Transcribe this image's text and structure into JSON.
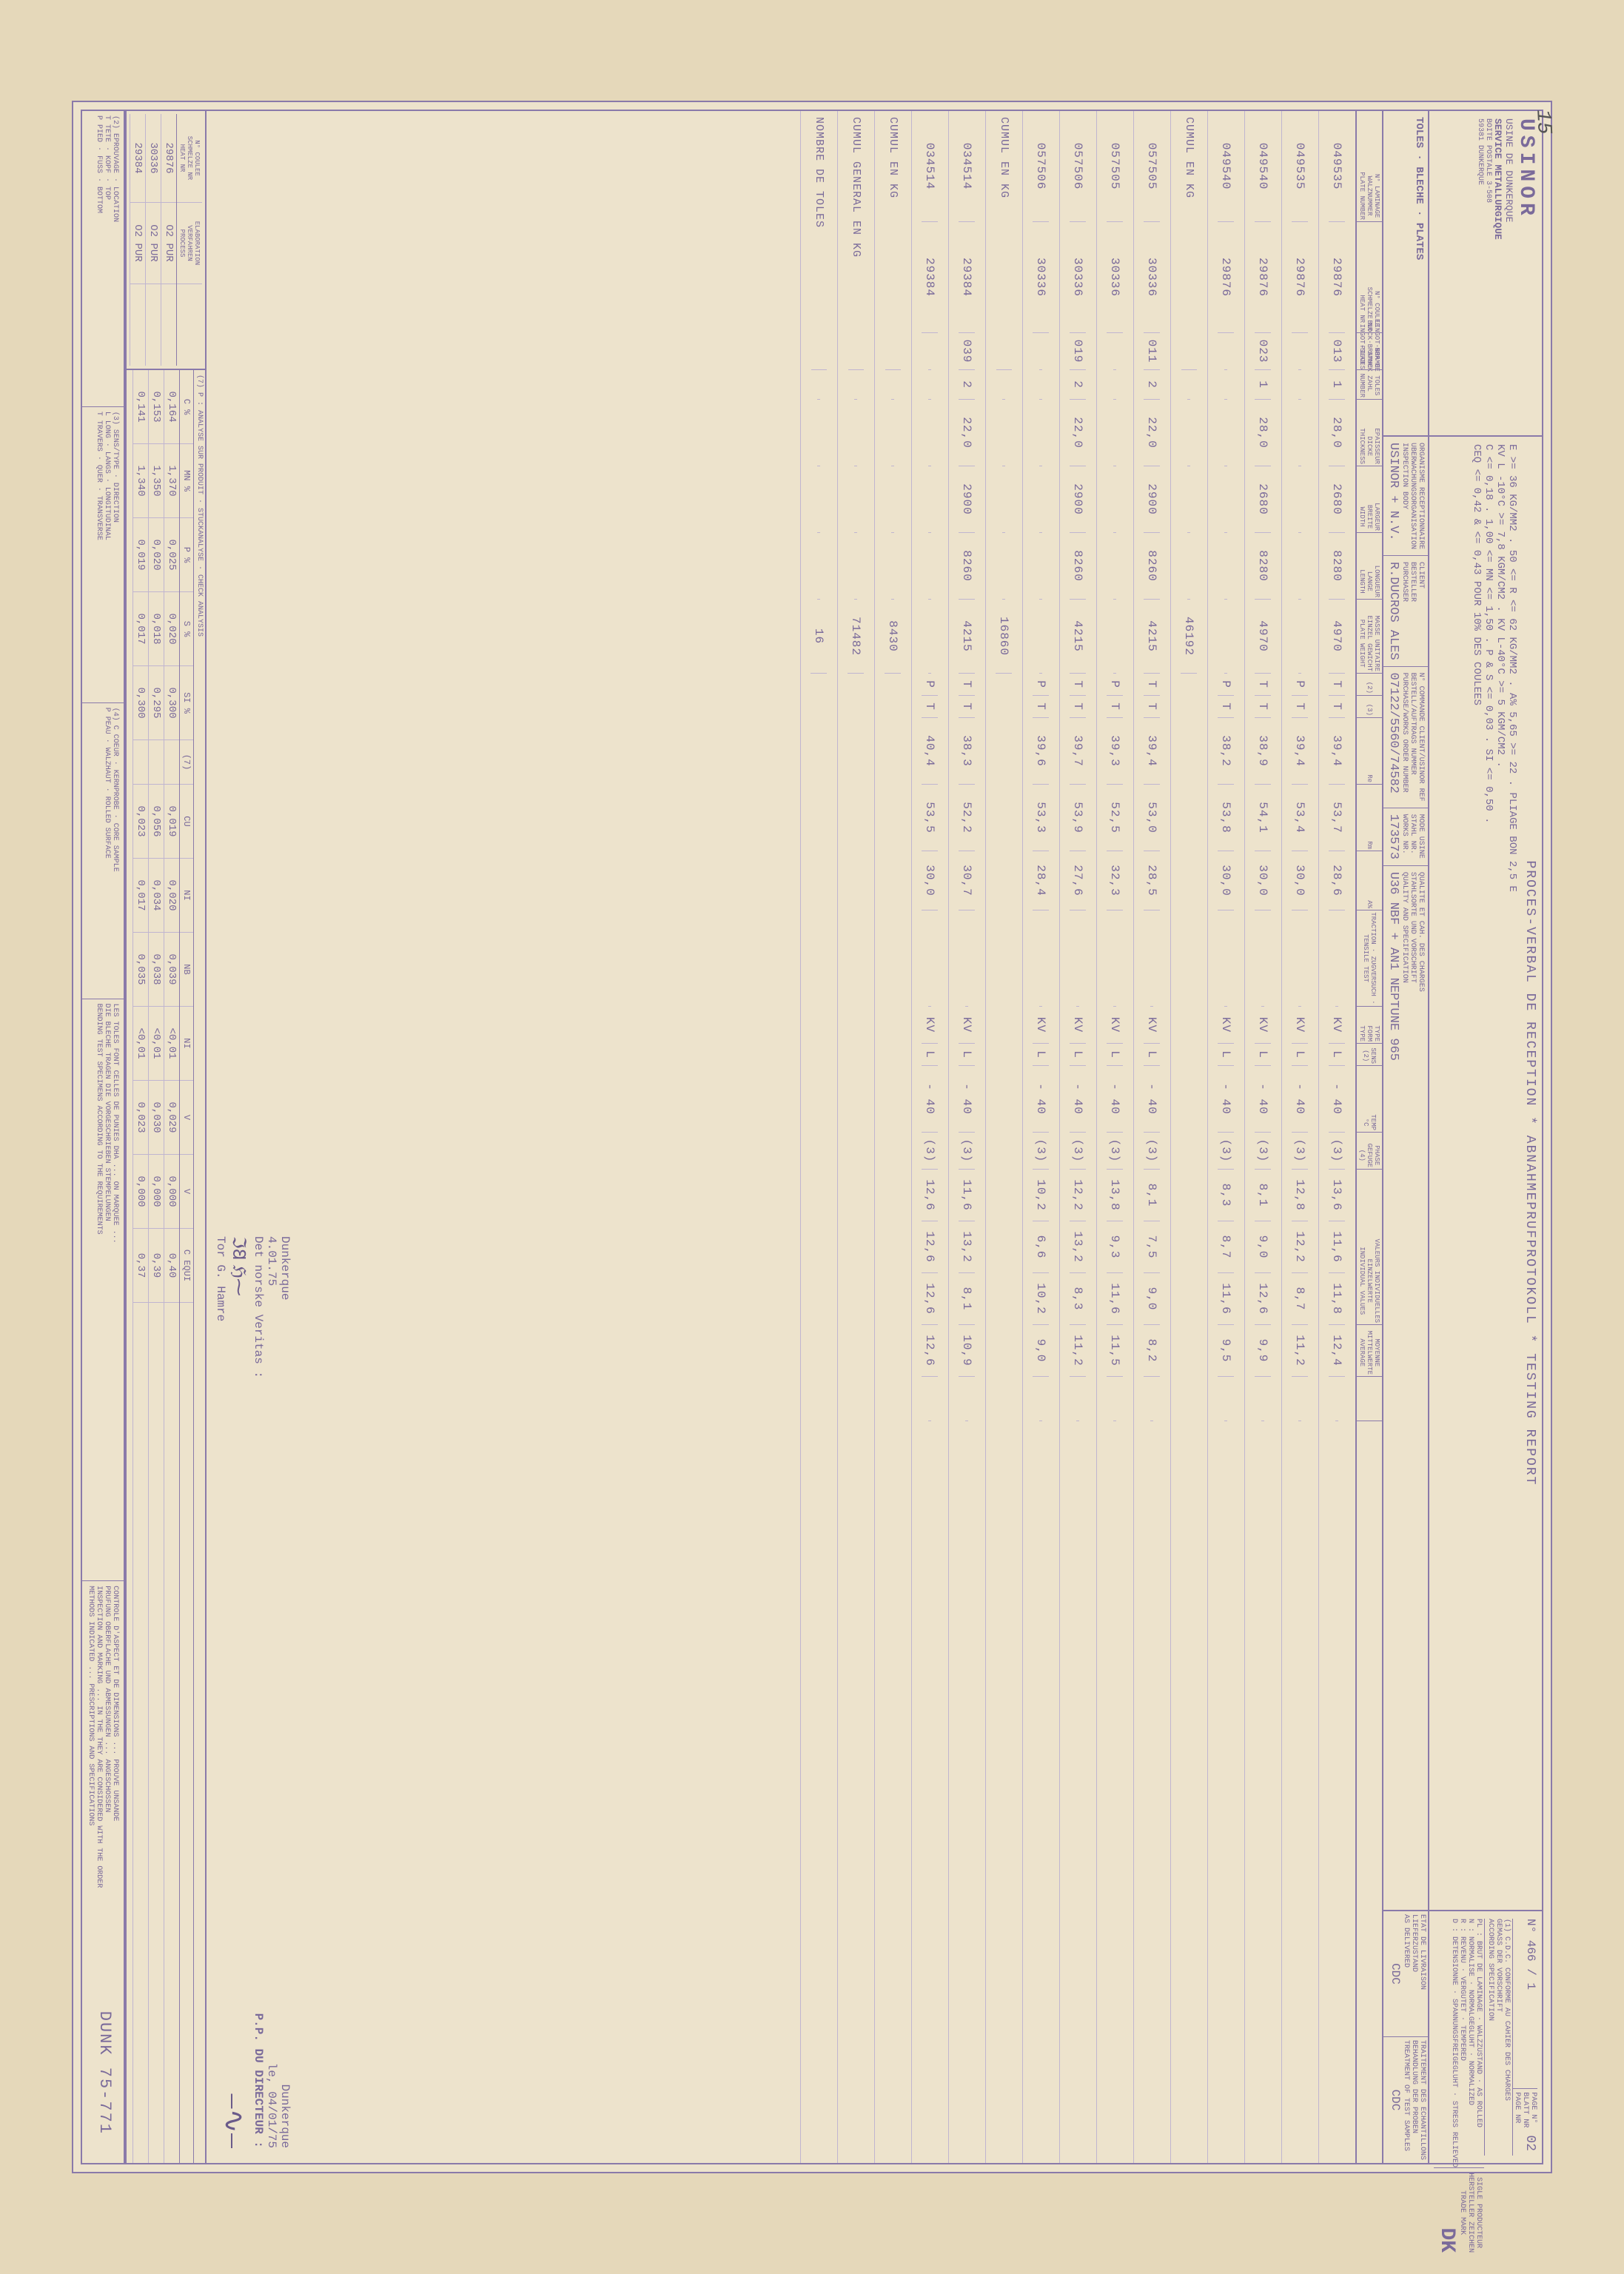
{
  "colors": {
    "ink": "#7a6a9a",
    "paper": "#ede3cc",
    "frame": "#8a7aaa",
    "rule": "#c0b5d0"
  },
  "stamp": "15",
  "header": {
    "company": "USINOR",
    "plant": "USINE DE DUNKERQUE",
    "service": "SERVICE METALLURGIQUE",
    "address1": "BOITE POSTALE 3-508",
    "address2": "59381 DUNKERQUE",
    "title": "PROCES-VERBAL DE RECEPTION * ABNAHMEPRUFPROTOKOLL * TESTING REPORT",
    "certno_lbl": "N°",
    "certno": "466 / 1",
    "page_lbl": "PAGE N°\nBLATT NR\nPAGE NR",
    "page": "02",
    "plates_lbl": "TOLES · BLECHE · PLATES",
    "cdc_lbl": "(1) C.D.C. CONFORME AU CAHIER DES CHARGES\nGEMASS DER VORSCHRIFT\nACCORDING SPECIFICATION",
    "states": "PL : BRUT DE LAMINAGE · WALZZUSTAND · AS ROLLED\nN : NORMALISE · NORMALGEGLUHT · NORMALIZED\nR : REVENU · VERGUTET · TEMPERED\nD : DETENSIONNE · SPANNUNGSFREIGEGLUHT · STRESS RELIEVED",
    "trade_lbl": "SIGLE PRODUCTEUR\nHERSTELLER ZEICHEN\nTRADE MARK",
    "trade": "DK"
  },
  "specs": {
    "line1": "E >= 36 KG/MM2 . 50 <= R <= 62 KG/MM2 . A% 5,65 >= 22 . PLIAGE BON 2,5 E",
    "line2": "KV L -10°C >= 7,8 KGM/CM2 . KV L-40°C >= 5 KGM/CM2 .",
    "line3": "C <= 0,18 . 1,00 <= MN <= 1,50 . P & S <= 0,03 . SI <= 0,50 .",
    "line4": "CEQ <= 0,42 & <= 0,43 POUR 10% DES COULEES",
    "standard": "U36 NBF + AN1 NEPTUNE 965"
  },
  "order": {
    "org_lbl": "ORGANISME RECEPTIONNAIRE\nUBERWACHUNGSORGANISATION\nINSPECTION BODY",
    "org": "USINOR + N.V.",
    "client_lbl": "CLIENT\nBESTELLER\nPURCHASER",
    "client": "R.DUCROS ALES",
    "cmdlbl": "N° COMMANDE CLIENT/USINOR REF\nBESTELL/AUFTRAGS NUMMER\nPURCHASE/WORKS ORDER NUMBER",
    "cmd": "07122/5560/74582",
    "mode_lbl": "MODE USINE\nSTAHL NR.\nWORKS NR.",
    "mode": "173573",
    "qv_lbl": "QUALITE ET CAH. DES CHARGES\nSTAHLSORTE UND VORSCHRIFT\nQUALITY AND SPECIFICATION",
    "etat_lbl": "ETAT DE LIVRAISON\nLIEFERZUSTAND\nAS DELIVERED",
    "cdc1": "CDC",
    "treat_lbl": "TRAITEMENT DES ECHANTILLONS\nBEHANDLUNG DER PROBEN\nTREATMENT OF TEST SAMPLES",
    "cdc2": "CDC"
  },
  "col": {
    "plate": "N° LAMINAGE\nWALZNUMMER\nPLATE NUMBER",
    "heat": "N° COULEE\nSCHMELZE NR\nHEAT NR",
    "ingot": "LINGOT·BRAME\nBLOCK·BRAMME\nINGOT·SLAB",
    "pcs": "NBR DE TOLES\nSTUCK ZAHL\nPIECES NUMBER",
    "thk": "EPAISSEUR\nDICKE\nTHICKNESS",
    "wid": "LARGEUR\nBREITE\nWIDTH",
    "len": "LONGUEUR\nLANGE\nLENGTH",
    "wgt": "MASSE UNITAIRE\nEINZEL GEWICHT\nPLATE WEIGHT",
    "pos": "(2)",
    "loc": "(3)",
    "re": "Re",
    "rm": "Rm",
    "a": "A%",
    "tensile": "TRACTION · ZUGVERSUCH · TENSILE TEST",
    "res_grp": "RESILIENCE · KERBSCHLAGVERSUCH · NOTCH TOUGHNESS",
    "type": "TYPE\nFORM\nTYPE",
    "sens": "SENS\n(2)",
    "temp": "TEMP\n°C",
    "ph": "PHASE\nGEFUGE\n(4)",
    "ind": "VALEURS INDIVIDUELLES\nEINZELWERTE\nINDIVIDUAL VALUES",
    "avg": "MOYENNE\nMITTELWERTE\nAVERAGE"
  },
  "rows": [
    {
      "plate": "049535",
      "heat": "29876",
      "ingot": "013",
      "pcs": "1",
      "thk": "28,0",
      "wid": "2680",
      "len": "8280",
      "wgt": "4970",
      "pos": "T",
      "loc": "T",
      "re": "39,4",
      "rm": "53,7",
      "a": "28,6",
      "type": "KV",
      "sens": "L",
      "temp": "- 40",
      "ph": "(3)",
      "v1": "13,6",
      "v2": "11,6",
      "v3": "11,8",
      "avg": "12,4"
    },
    {
      "plate": "049535",
      "heat": "29876",
      "ingot": "",
      "pcs": "",
      "thk": "",
      "wid": "",
      "len": "",
      "wgt": "",
      "pos": "P",
      "loc": "T",
      "re": "39,4",
      "rm": "53,4",
      "a": "30,0",
      "type": "KV",
      "sens": "L",
      "temp": "- 40",
      "ph": "(3)",
      "v1": "12,8",
      "v2": "12,2",
      "v3": "8,7",
      "avg": "11,2"
    },
    {
      "plate": "049540",
      "heat": "29876",
      "ingot": "023",
      "pcs": "1",
      "thk": "28,0",
      "wid": "2680",
      "len": "8280",
      "wgt": "4970",
      "pos": "T",
      "loc": "T",
      "re": "38,9",
      "rm": "54,1",
      "a": "30,0",
      "type": "KV",
      "sens": "L",
      "temp": "- 40",
      "ph": "(3)",
      "v1": "8,1",
      "v2": "9,0",
      "v3": "12,6",
      "avg": "9,9"
    },
    {
      "plate": "049540",
      "heat": "29876",
      "ingot": "",
      "pcs": "",
      "thk": "",
      "wid": "",
      "len": "",
      "wgt": "",
      "pos": "P",
      "loc": "T",
      "re": "38,2",
      "rm": "53,8",
      "a": "30,0",
      "type": "KV",
      "sens": "L",
      "temp": "- 40",
      "ph": "(3)",
      "v1": "8,3",
      "v2": "8,7",
      "v3": "11,6",
      "avg": "9,5"
    },
    {
      "cumul": "CUMUL EN KG",
      "wgt": "46192"
    },
    {
      "plate": "057505",
      "heat": "30336",
      "ingot": "011",
      "pcs": "2",
      "thk": "22,0",
      "wid": "2900",
      "len": "8260",
      "wgt": "4215",
      "pos": "T",
      "loc": "T",
      "re": "39,4",
      "rm": "53,0",
      "a": "28,5",
      "type": "KV",
      "sens": "L",
      "temp": "- 40",
      "ph": "(3)",
      "v1": "8,1",
      "v2": "7,5",
      "v3": "9,0",
      "avg": "8,2"
    },
    {
      "plate": "057505",
      "heat": "30336",
      "ingot": "",
      "pcs": "",
      "thk": "",
      "wid": "",
      "len": "",
      "wgt": "",
      "pos": "P",
      "loc": "T",
      "re": "39,3",
      "rm": "52,5",
      "a": "32,3",
      "type": "KV",
      "sens": "L",
      "temp": "- 40",
      "ph": "(3)",
      "v1": "13,8",
      "v2": "9,3",
      "v3": "11,6",
      "avg": "11,5"
    },
    {
      "plate": "057506",
      "heat": "30336",
      "ingot": "019",
      "pcs": "2",
      "thk": "22,0",
      "wid": "2900",
      "len": "8260",
      "wgt": "4215",
      "pos": "T",
      "loc": "T",
      "re": "39,7",
      "rm": "53,9",
      "a": "27,6",
      "type": "KV",
      "sens": "L",
      "temp": "- 40",
      "ph": "(3)",
      "v1": "12,2",
      "v2": "13,2",
      "v3": "8,3",
      "avg": "11,2"
    },
    {
      "plate": "057506",
      "heat": "30336",
      "ingot": "",
      "pcs": "",
      "thk": "",
      "wid": "",
      "len": "",
      "wgt": "",
      "pos": "P",
      "loc": "T",
      "re": "39,6",
      "rm": "53,3",
      "a": "28,4",
      "type": "KV",
      "sens": "L",
      "temp": "- 40",
      "ph": "(3)",
      "v1": "10,2",
      "v2": "6,6",
      "v3": "10,2",
      "avg": "9,0"
    },
    {
      "cumul": "CUMUL EN KG",
      "wgt": "16860"
    },
    {
      "plate": "034514",
      "heat": "29384",
      "ingot": "039",
      "pcs": "2",
      "thk": "22,0",
      "wid": "2900",
      "len": "8260",
      "wgt": "4215",
      "pos": "T",
      "loc": "T",
      "re": "38,3",
      "rm": "52,2",
      "a": "30,7",
      "type": "KV",
      "sens": "L",
      "temp": "- 40",
      "ph": "(3)",
      "v1": "11,6",
      "v2": "13,2",
      "v3": "8,1",
      "avg": "10,9"
    },
    {
      "plate": "034514",
      "heat": "29384",
      "ingot": "",
      "pcs": "",
      "thk": "",
      "wid": "",
      "len": "",
      "wgt": "",
      "pos": "P",
      "loc": "T",
      "re": "40,4",
      "rm": "53,5",
      "a": "30,0",
      "type": "KV",
      "sens": "L",
      "temp": "- 40",
      "ph": "(3)",
      "v1": "12,6",
      "v2": "12,6",
      "v3": "12,6",
      "avg": "12,6"
    },
    {
      "cumul": "CUMUL EN KG",
      "wgt": "8430"
    },
    {
      "cumul": "CUMUL GENERAL EN KG",
      "wgt": "71482"
    },
    {
      "cumul": "NOMBRE DE TOLES",
      "wgt": "16"
    }
  ],
  "sig1": {
    "place": "Dunkerque",
    "date": "4.01.75",
    "org": "Det norske Veritas :",
    "name": "Tor G. Hamre"
  },
  "sig2": {
    "place": "Dunkerque",
    "date_lbl": "le,",
    "date": "04/01/75",
    "pp": "P.P. DU DIRECTEUR :"
  },
  "chem": {
    "title": "(7) P : ANALYSE SUR PRODUIT · STUCKANALYSE · CHECK ANALYSIS",
    "hdr": {
      "heat": "N° COULEE\nSCHMELZE NR\nHEAT NR",
      "proc": "ELABORATION\nVERFAHREN\nPROCESS",
      "c": "C %",
      "mn": "MN %",
      "p": "P %",
      "s": "S %",
      "si": "SI %",
      "cu": "CU",
      "ni": "NI",
      "nb": "NB",
      "v": "V",
      "note": "(7)",
      "ceq": "C EQUI"
    },
    "rows": [
      {
        "heat": "29876",
        "proc": "O2 PUR",
        "c": "0,164",
        "mn": "1,370",
        "p": "0,025",
        "s": "0,020",
        "si": "0,300",
        "cu": "0,019",
        "ni": "0,020",
        "nb": "0,039",
        "nbp": "<0,01",
        "v": "0,029",
        "vv": "0,000",
        "ceq": "0,40"
      },
      {
        "heat": "30336",
        "proc": "O2 PUR",
        "c": "0,153",
        "mn": "1,350",
        "p": "0,020",
        "s": "0,018",
        "si": "0,295",
        "cu": "0,056",
        "ni": "0,034",
        "nb": "0,038",
        "nbp": "<0,01",
        "v": "0,030",
        "vv": "0,000",
        "ceq": "0,39"
      },
      {
        "heat": "29384",
        "proc": "O2 PUR",
        "c": "0,141",
        "mn": "1,340",
        "p": "0,019",
        "s": "0,017",
        "si": "0,300",
        "cu": "0,023",
        "ni": "0,017",
        "nb": "0,035",
        "nbp": "<0,01",
        "v": "0,023",
        "vv": "0,000",
        "ceq": "0,37"
      }
    ]
  },
  "footer": {
    "b1": "(2) EPROUVAGE · LOCATION\nT TETE · KOPF · TOP\nP PIED · FUSS · BOTTOM",
    "b2": "(3) SENS/TYPE · DIRECTION\nL LONG · LANGS · LONGITUDINAL\nT TRAVERS · QUER · TRANSVERSE",
    "b3": "(4) C COEUR · KERNPROBE · CORE SAMPLE\nP PEAU · WALZHAUT · ROLLED SURFACE",
    "b4": "LES TOLES FONT CELLES DE PUNIES DHA ... ON MARQUEE ...\nDIE BLECHE TRAGEN DIE VORGESCHRIEBEN STEMPELUNGEN\nBENDING TEST SPECIMENS ACCORDING TO THE REQUIREMENTS",
    "b5": "CONTROLE D'ASPECT ET DE DIMENSIONS ... PROUVE UNSANDE\nPRUFUNG OBERFLACHE UND ABMESSUNGEN ... ANGESCHOSSEN\nINSPECTION AND MARKING ... IN THE THEY ARE CONSIDERED WITH THE ORDER\nMETHODS INDICATED ... PRESCRIPTIONS AND SPECIFICATIONS"
  },
  "docnum": "DUNK 75-771"
}
